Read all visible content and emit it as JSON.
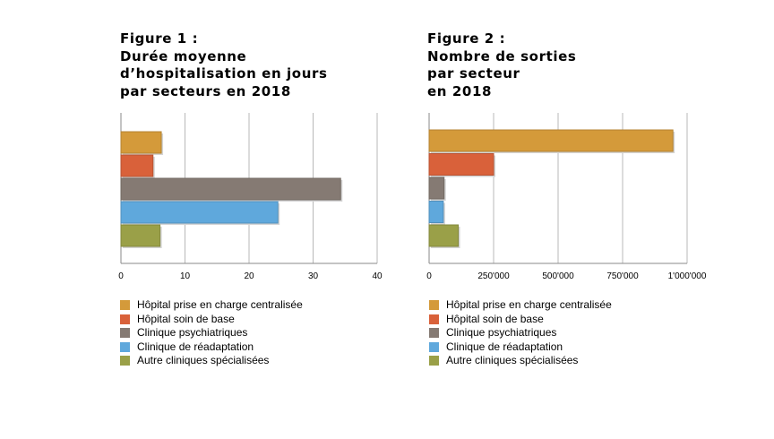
{
  "figures": [
    {
      "title_lines": [
        "Figure 1 :",
        "Durée moyenne",
        "d’hospitalisation en jours",
        "par secteurs en 2018"
      ]
    },
    {
      "title_lines": [
        "Figure 2 :",
        "Nombre de sorties",
        "par secteur",
        "en 2018"
      ]
    }
  ],
  "legend": {
    "items": [
      {
        "label": "Hôpital prise en charge centralisée",
        "color": "#D49A3A"
      },
      {
        "label": "Hôpital soin de base",
        "color": "#D9613A"
      },
      {
        "label": "Clinique psychiatriques",
        "color": "#857A73"
      },
      {
        "label": "Clinique de réadaptation",
        "color": "#5FA8DC"
      },
      {
        "label": "Autre cliniques spécialisées",
        "color": "#9AA048"
      }
    ]
  },
  "chart_data": [
    {
      "type": "bar",
      "orientation": "horizontal",
      "title": "Figure 1 : Durée moyenne d’hospitalisation en jours par secteurs en 2018",
      "categories": [
        "Hôpital prise en charge centralisée",
        "Hôpital soin de base",
        "Clinique psychiatriques",
        "Clinique de réadaptation",
        "Autre cliniques spécialisées"
      ],
      "values": [
        6.3,
        5.0,
        34.3,
        24.5,
        6.1
      ],
      "colors": [
        "#D49A3A",
        "#D9613A",
        "#857A73",
        "#5FA8DC",
        "#9AA048"
      ],
      "xlim": [
        0,
        40
      ],
      "xticks": [
        0,
        10,
        20,
        30,
        40
      ],
      "xtick_labels": [
        "0",
        "10",
        "20",
        "30",
        "40"
      ],
      "grid": true,
      "legend_position": "bottom"
    },
    {
      "type": "bar",
      "orientation": "horizontal",
      "title": "Figure 2 : Nombre de sorties par secteur en 2018",
      "categories": [
        "Hôpital prise en charge centralisée",
        "Hôpital soin de base",
        "Clinique psychiatriques",
        "Clinique de réadaptation",
        "Autre cliniques spécialisées"
      ],
      "values": [
        945000,
        250000,
        58000,
        55000,
        113000
      ],
      "colors": [
        "#D49A3A",
        "#D9613A",
        "#857A73",
        "#5FA8DC",
        "#9AA048"
      ],
      "xlim": [
        0,
        1000000
      ],
      "xticks": [
        0,
        250000,
        500000,
        750000,
        1000000
      ],
      "xtick_labels": [
        "0",
        "250'000",
        "500'000",
        "750'000",
        "1'000'000"
      ],
      "grid": true,
      "legend_position": "bottom"
    }
  ]
}
